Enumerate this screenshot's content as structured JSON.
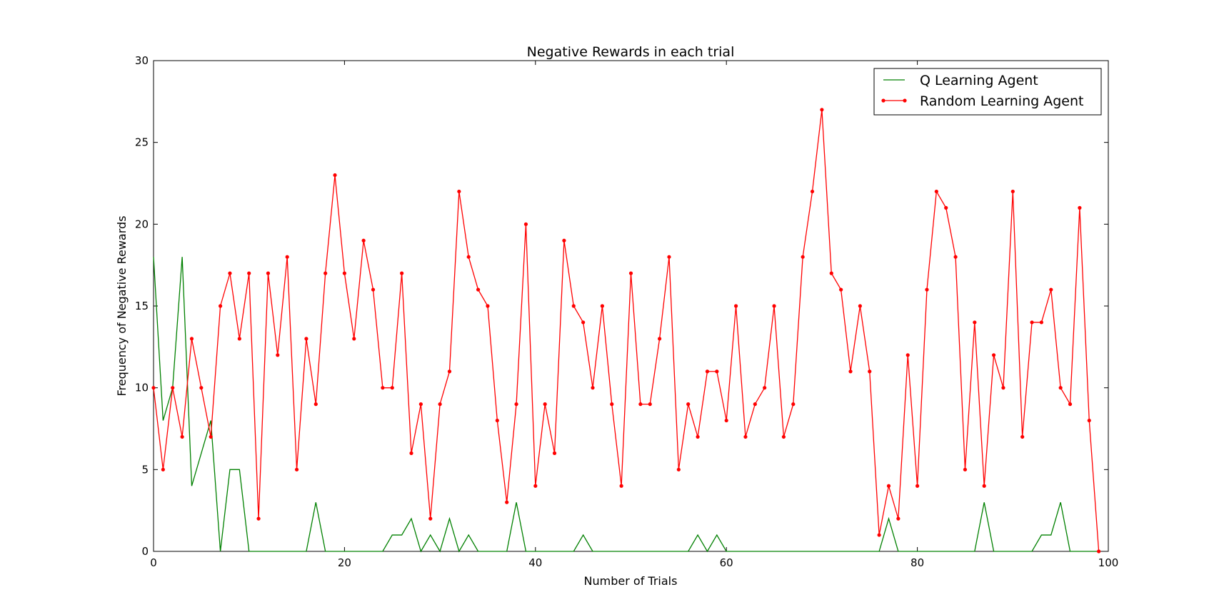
{
  "chart_data": {
    "type": "line",
    "title": "Negative Rewards in each trial",
    "xlabel": "Number of Trials",
    "ylabel": "Frequency of Negative Rewards",
    "xlim": [
      0,
      100
    ],
    "ylim": [
      0,
      30
    ],
    "xticks": [
      0,
      20,
      40,
      60,
      80,
      100
    ],
    "yticks": [
      0,
      5,
      10,
      15,
      20,
      25,
      30
    ],
    "grid": false,
    "legend_position": "top-right",
    "series": [
      {
        "name": "Q Learning Agent",
        "color": "#008000",
        "marker": "none",
        "values": [
          18,
          8,
          10,
          18,
          4,
          6,
          8,
          0,
          5,
          5,
          0,
          0,
          0,
          0,
          0,
          0,
          0,
          3,
          0,
          0,
          0,
          0,
          0,
          0,
          0,
          1,
          1,
          2,
          0,
          1,
          0,
          2,
          0,
          1,
          0,
          0,
          0,
          0,
          3,
          0,
          0,
          0,
          0,
          0,
          0,
          1,
          0,
          0,
          0,
          0,
          0,
          0,
          0,
          0,
          0,
          0,
          0,
          1,
          0,
          1,
          0,
          0,
          0,
          0,
          0,
          0,
          0,
          0,
          0,
          0,
          0,
          0,
          0,
          0,
          0,
          0,
          0,
          2,
          0,
          0,
          0,
          0,
          0,
          0,
          0,
          0,
          0,
          3,
          0,
          0,
          0,
          0,
          0,
          1,
          1,
          3,
          0,
          0,
          0,
          0
        ]
      },
      {
        "name": "Random Learning Agent",
        "color": "#ff0000",
        "marker": "dot",
        "values": [
          10,
          5,
          10,
          7,
          13,
          10,
          7,
          15,
          17,
          13,
          17,
          2,
          17,
          12,
          18,
          5,
          13,
          9,
          17,
          23,
          17,
          13,
          19,
          16,
          10,
          10,
          17,
          6,
          9,
          2,
          9,
          11,
          22,
          18,
          16,
          15,
          8,
          3,
          9,
          20,
          4,
          9,
          6,
          19,
          15,
          14,
          10,
          15,
          9,
          4,
          17,
          9,
          9,
          13,
          18,
          5,
          9,
          7,
          11,
          11,
          8,
          15,
          7,
          9,
          10,
          15,
          7,
          9,
          18,
          22,
          27,
          17,
          16,
          11,
          15,
          11,
          1,
          4,
          2,
          12,
          4,
          16,
          22,
          21,
          18,
          5,
          14,
          4,
          12,
          10,
          22,
          7,
          14,
          14,
          16,
          10,
          9,
          21,
          8,
          0
        ]
      }
    ]
  }
}
